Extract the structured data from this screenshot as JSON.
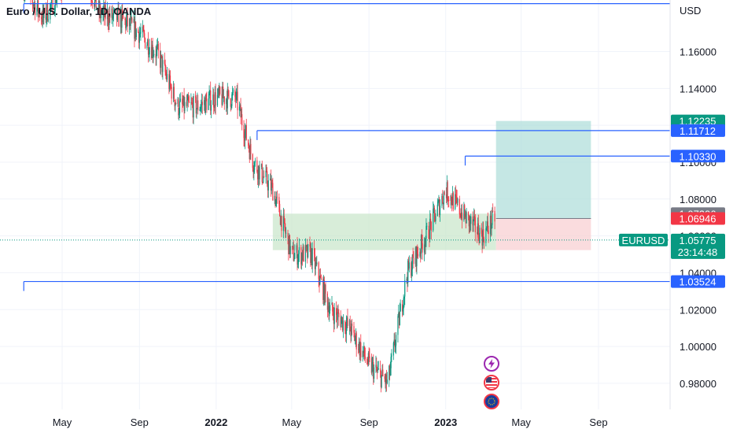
{
  "header": {
    "title": "Euro / U.S. Dollar, 1D, OANDA",
    "currency": "USD"
  },
  "chart_data": {
    "type": "candlestick",
    "symbol": "EURUSD",
    "ylim": [
      0.965,
      1.185
    ],
    "y_ticks": [
      "1.16000",
      "1.14000",
      "1.12000",
      "1.10000",
      "1.08000",
      "1.06000",
      "1.04000",
      "1.02000",
      "1.00000",
      "0.98000"
    ],
    "x_ticks": [
      {
        "label": "May",
        "date": "2021-05-01",
        "bold": false
      },
      {
        "label": "Sep",
        "date": "2021-09-01",
        "bold": false
      },
      {
        "label": "2022",
        "date": "2022-01-01",
        "bold": true
      },
      {
        "label": "May",
        "date": "2022-05-01",
        "bold": false
      },
      {
        "label": "Sep",
        "date": "2022-09-01",
        "bold": false
      },
      {
        "label": "2023",
        "date": "2023-01-01",
        "bold": true
      },
      {
        "label": "May",
        "date": "2023-05-01",
        "bold": false
      },
      {
        "label": "Sep",
        "date": "2023-09-01",
        "bold": false
      }
    ],
    "price_path": [
      [
        "2021-03-01",
        1.195
      ],
      [
        "2021-04-01",
        1.178
      ],
      [
        "2021-05-01",
        1.195
      ],
      [
        "2021-06-01",
        1.205
      ],
      [
        "2021-07-01",
        1.18
      ],
      [
        "2021-08-01",
        1.178
      ],
      [
        "2021-09-01",
        1.17
      ],
      [
        "2021-10-01",
        1.158
      ],
      [
        "2021-11-01",
        1.13
      ],
      [
        "2021-12-01",
        1.13
      ],
      [
        "2022-01-01",
        1.135
      ],
      [
        "2022-02-01",
        1.135
      ],
      [
        "2022-03-01",
        1.1
      ],
      [
        "2022-04-01",
        1.085
      ],
      [
        "2022-05-01",
        1.05
      ],
      [
        "2022-06-01",
        1.05
      ],
      [
        "2022-07-01",
        1.02
      ],
      [
        "2022-08-01",
        1.01
      ],
      [
        "2022-09-01",
        0.99
      ],
      [
        "2022-10-01",
        0.98
      ],
      [
        "2022-11-01",
        1.04
      ],
      [
        "2022-12-01",
        1.06
      ],
      [
        "2023-01-01",
        1.085
      ],
      [
        "2023-02-01",
        1.07
      ],
      [
        "2023-03-01",
        1.06
      ],
      [
        "2023-03-20",
        1.07
      ]
    ],
    "horizontal_levels": [
      {
        "price": 1.186,
        "x_start": "2021-03-01",
        "color": "#2962ff"
      },
      {
        "price": 1.11712,
        "x_start": "2022-03-07",
        "color": "#2962ff"
      },
      {
        "price": 1.1033,
        "x_start": "2023-02-01",
        "color": "#2962ff"
      },
      {
        "price": 1.03524,
        "x_start": "2021-03-01",
        "color": "#2962ff"
      }
    ],
    "demand_zone": {
      "x_start": "2022-04-01",
      "x_end": "2023-03-22",
      "top": 1.07206,
      "bottom": 1.05227,
      "color": "#c8e6c9"
    },
    "long_position": {
      "x_start": "2023-03-22",
      "x_end": "2023-08-20",
      "entry": 1.06946,
      "target": 1.12235,
      "stop": 1.05227,
      "profit_color": "#b2dfdb",
      "loss_color": "#f8d0d3"
    },
    "price_tags": [
      {
        "label": "1.12235",
        "price": 1.12235,
        "color": "#089981"
      },
      {
        "label": "1.11712",
        "price": 1.11712,
        "color": "#2962ff"
      },
      {
        "label": "1.10330",
        "price": 1.1033,
        "color": "#2962ff"
      },
      {
        "label": "1.07206",
        "price": 1.07206,
        "color": "#787b86"
      },
      {
        "label": "1.06946",
        "price": 1.06946,
        "color": "#f23645"
      },
      {
        "label": "1.05227",
        "price": 1.05227,
        "color": "#f23645"
      },
      {
        "label": "1.03524",
        "price": 1.03524,
        "color": "#2962ff"
      }
    ],
    "last_price": {
      "label": "1.05775",
      "price": 1.05775,
      "countdown": "23:14:48",
      "color": "#089981"
    },
    "up_color": "#089981",
    "down_color": "#f23645"
  },
  "events": [
    {
      "icon": "lightning-icon",
      "color": "#9c27b0"
    },
    {
      "icon": "us-flag-icon",
      "color": "#f23645"
    },
    {
      "icon": "eu-flag-icon",
      "color": "#f23645"
    }
  ]
}
